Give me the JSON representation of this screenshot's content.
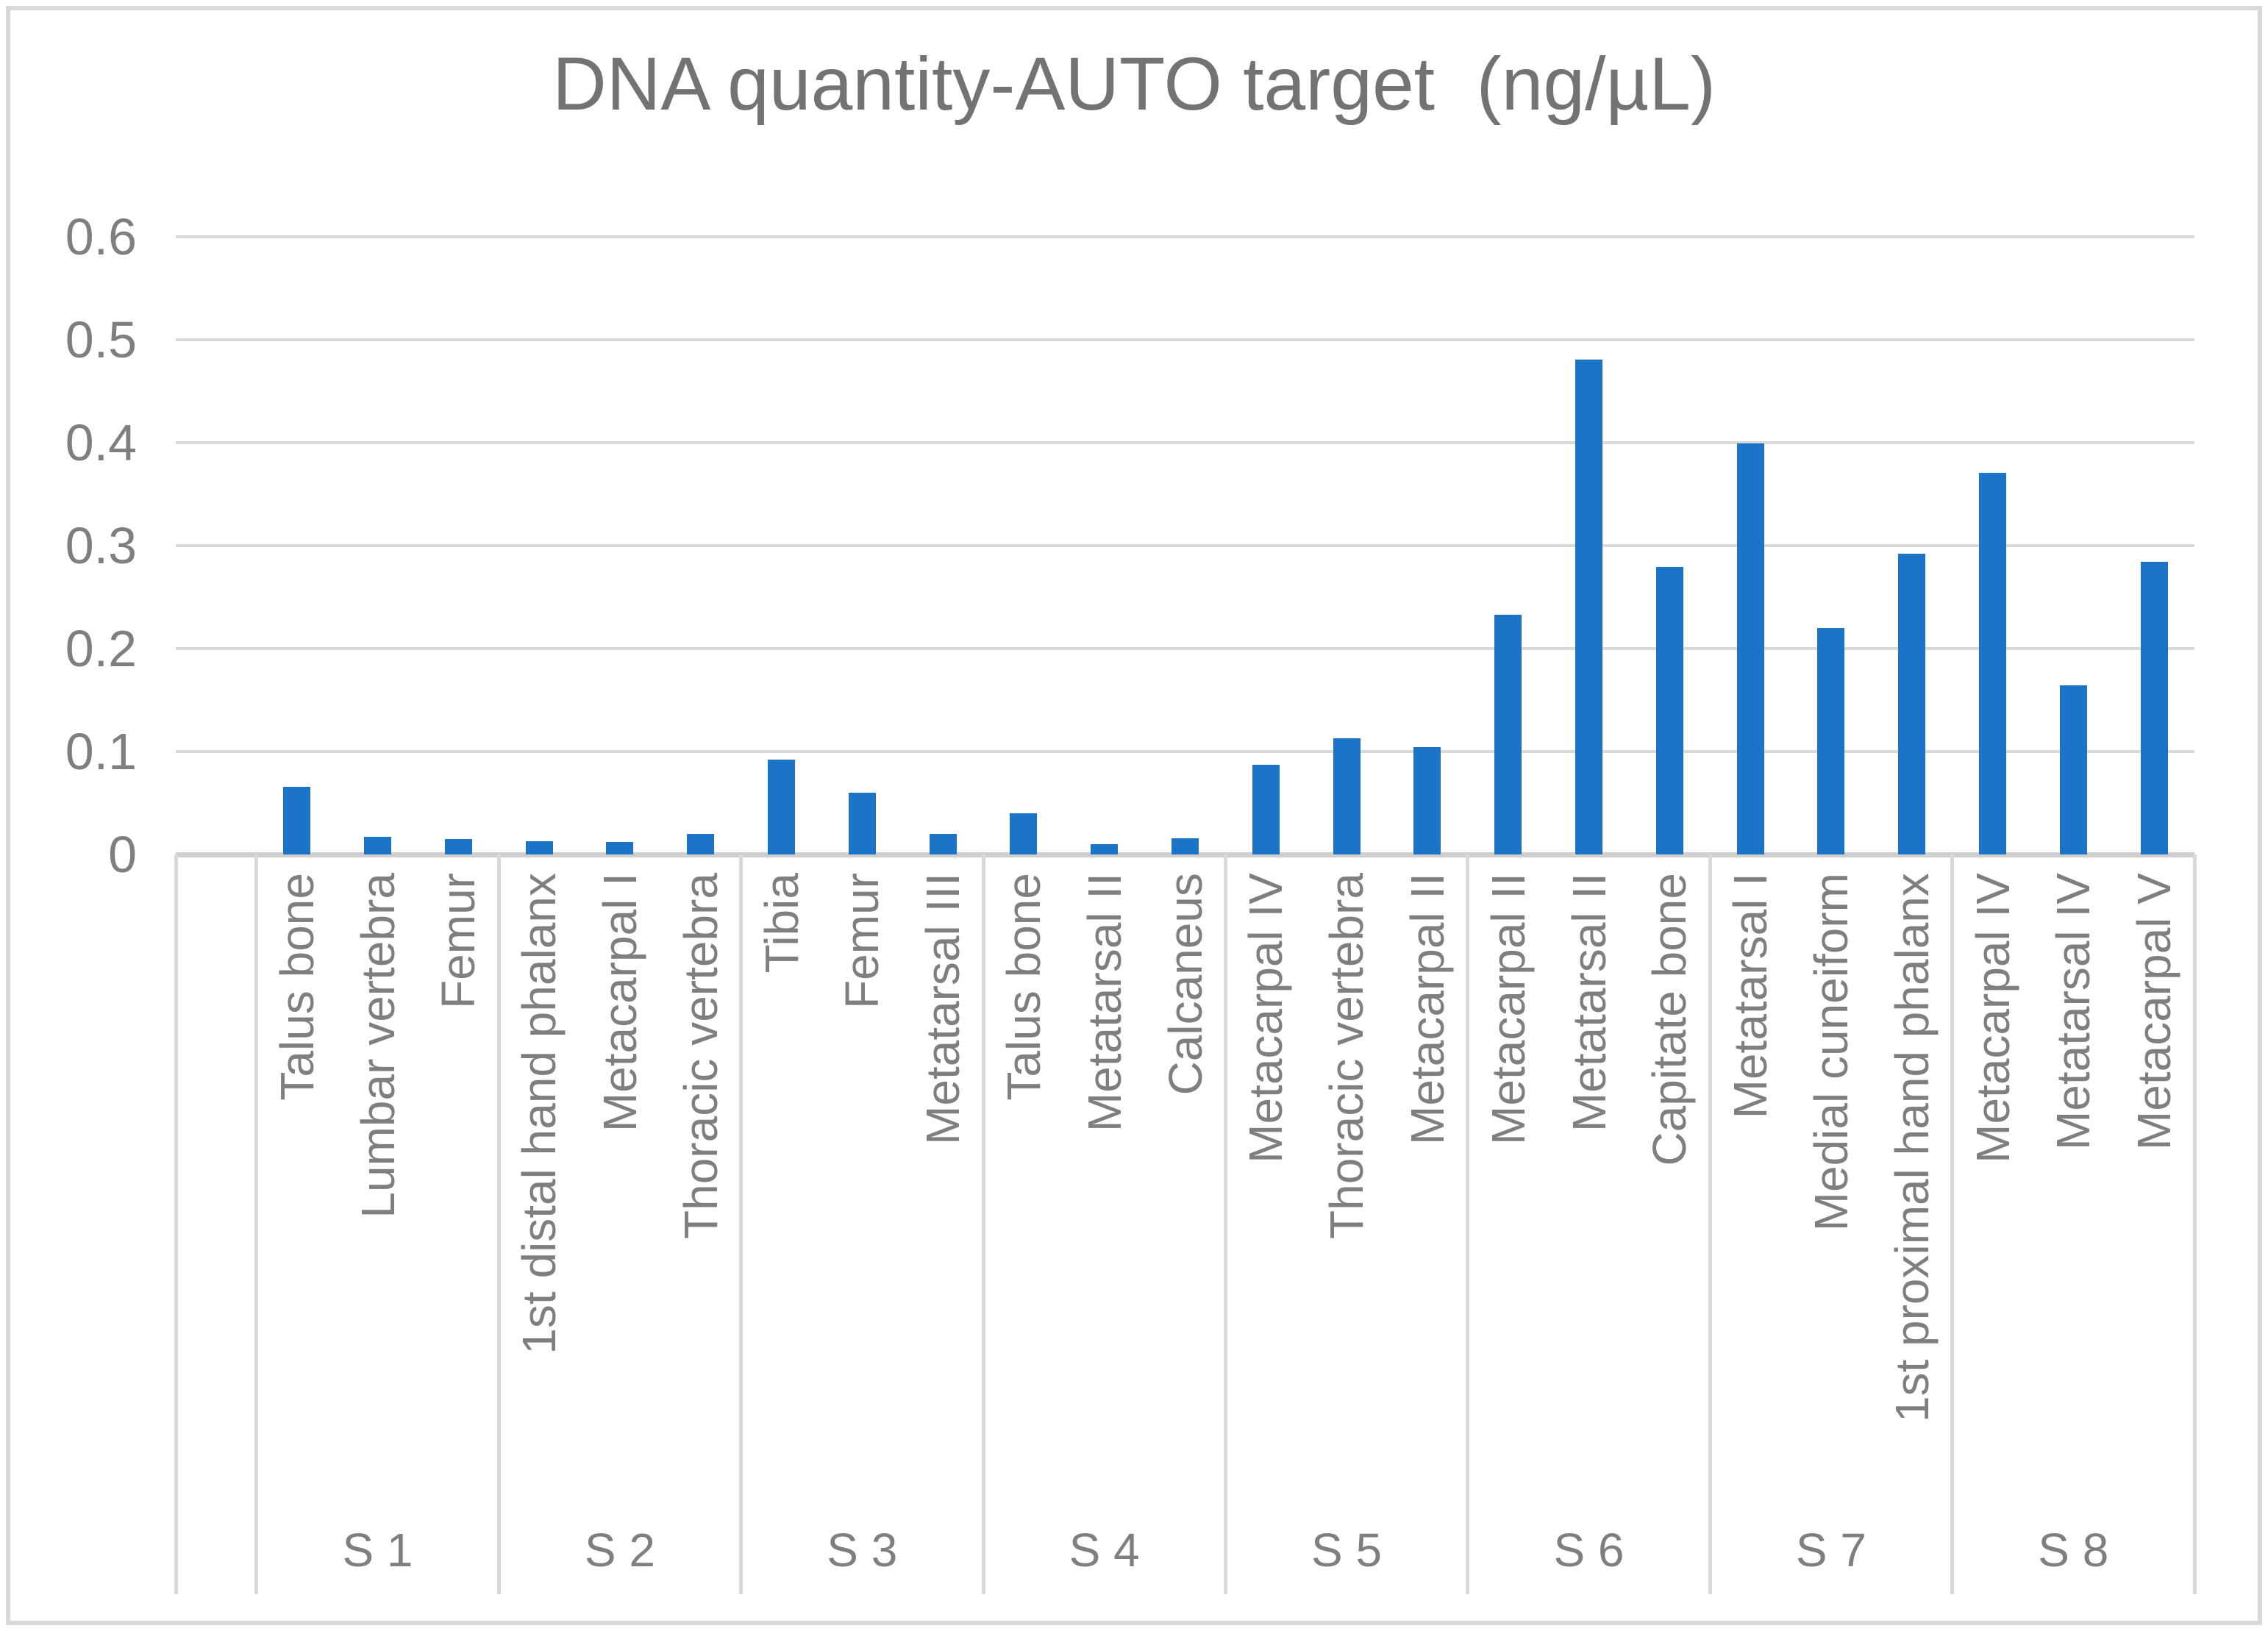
{
  "chart_data": {
    "type": "bar",
    "title": "DNA quantity-AUTO target  (ng/µL)",
    "xlabel": "",
    "ylabel": "",
    "ylim": [
      0,
      0.6
    ],
    "yticks": [
      0,
      0.1,
      0.2,
      0.3,
      0.4,
      0.5,
      0.6
    ],
    "ytick_labels": [
      "0",
      "0.1",
      "0.2",
      "0.3",
      "0.4",
      "0.5",
      "0.6"
    ],
    "grid": true,
    "legend": "none",
    "leading_empty_slots": 1,
    "groups": [
      {
        "label": "S 1",
        "bones": [
          "Talus bone",
          "Lumbar vertebra",
          "Femur"
        ],
        "values": [
          0.066,
          0.017,
          0.015
        ]
      },
      {
        "label": "S 2",
        "bones": [
          "1st distal hand phalanx",
          "Metacarpal I",
          "Thoracic vertebra"
        ],
        "values": [
          0.013,
          0.012,
          0.02
        ]
      },
      {
        "label": "S 3",
        "bones": [
          "Tibia",
          "Femur",
          "Metatarsal III"
        ],
        "values": [
          0.092,
          0.06,
          0.02
        ]
      },
      {
        "label": "S 4",
        "bones": [
          "Talus bone",
          "Metatarsal II",
          "Calcaneus"
        ],
        "values": [
          0.04,
          0.01,
          0.016
        ]
      },
      {
        "label": "S 5",
        "bones": [
          "Metacarpal IV",
          "Thoracic vertebra",
          "Metacarpal II"
        ],
        "values": [
          0.087,
          0.113,
          0.104
        ]
      },
      {
        "label": "S 6",
        "bones": [
          "Metacarpal II",
          "Metatarsal II",
          "Capitate bone"
        ],
        "values": [
          0.233,
          0.481,
          0.279
        ]
      },
      {
        "label": "S 7",
        "bones": [
          "Metatarsal I",
          "Medial cuneiform",
          "1st proximal hand phalanx"
        ],
        "values": [
          0.399,
          0.22,
          0.292
        ]
      },
      {
        "label": "S 8",
        "bones": [
          "Metacarpal IV",
          "Metatarsal IV",
          "Metacarpal V"
        ],
        "values": [
          0.371,
          0.164,
          0.284
        ]
      }
    ],
    "colors": {
      "bar": "#1B74C8",
      "gridline": "#D9D9D9",
      "axis_line": "#CFCFCF",
      "separator": "#D9D9D9",
      "tick_text": "#7F7F7F",
      "label_text": "#7F7F7F",
      "title_text": "#737373",
      "border": "#D9D9D9",
      "background": "#FFFFFF"
    }
  }
}
